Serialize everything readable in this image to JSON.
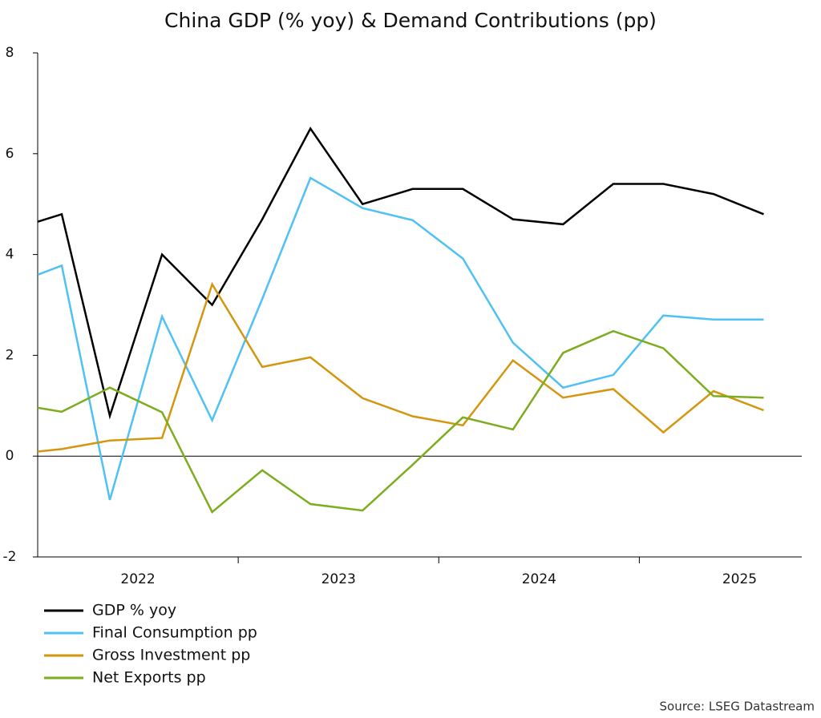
{
  "chart_data": {
    "type": "line",
    "title": "China GDP (% yoy) & Demand Contributions (pp)",
    "source": "Source: LSEG Datastream",
    "x": [
      2022.0,
      2022.12,
      2022.36,
      2022.62,
      2022.87,
      2023.12,
      2023.36,
      2023.62,
      2023.87,
      2024.12,
      2024.37,
      2024.62,
      2024.87,
      2025.12,
      2025.37,
      2025.62
    ],
    "xlim": [
      2022,
      2025.81
    ],
    "xticks": [
      {
        "value": 2022.5,
        "label": "2022"
      },
      {
        "value": 2023.5,
        "label": "2023"
      },
      {
        "value": 2024.5,
        "label": "2024"
      },
      {
        "value": 2025.5,
        "label": "2025"
      }
    ],
    "ylim": [
      -2,
      8
    ],
    "yticks": [
      -2,
      0,
      2,
      4,
      6,
      8
    ],
    "legend": "bottom-left",
    "series": [
      {
        "name": "GDP % yoy",
        "color": "#000000",
        "values": [
          4.65,
          4.8,
          0.8,
          4.0,
          3.0,
          4.7,
          6.5,
          5.0,
          5.3,
          5.3,
          4.7,
          4.6,
          5.4,
          5.4,
          5.2,
          4.8
        ]
      },
      {
        "name": "Final Consumption pp",
        "color": "#4fc1f5",
        "values": [
          3.6,
          3.78,
          -0.87,
          2.77,
          0.71,
          3.12,
          5.52,
          4.92,
          4.68,
          3.92,
          2.25,
          1.36,
          1.61,
          2.79,
          2.71,
          2.71
        ]
      },
      {
        "name": "Gross Investment pp",
        "color": "#d4960f",
        "values": [
          0.09,
          0.14,
          0.31,
          0.36,
          3.41,
          1.77,
          1.96,
          1.15,
          0.79,
          0.61,
          1.9,
          1.16,
          1.33,
          0.47,
          1.29,
          0.91
        ]
      },
      {
        "name": "Net Exports pp",
        "color": "#7cad1e",
        "values": [
          0.96,
          0.88,
          1.36,
          0.87,
          -1.11,
          -0.28,
          -0.95,
          -1.08,
          -0.17,
          0.77,
          0.53,
          2.05,
          2.48,
          2.14,
          1.19,
          1.16
        ]
      }
    ]
  }
}
